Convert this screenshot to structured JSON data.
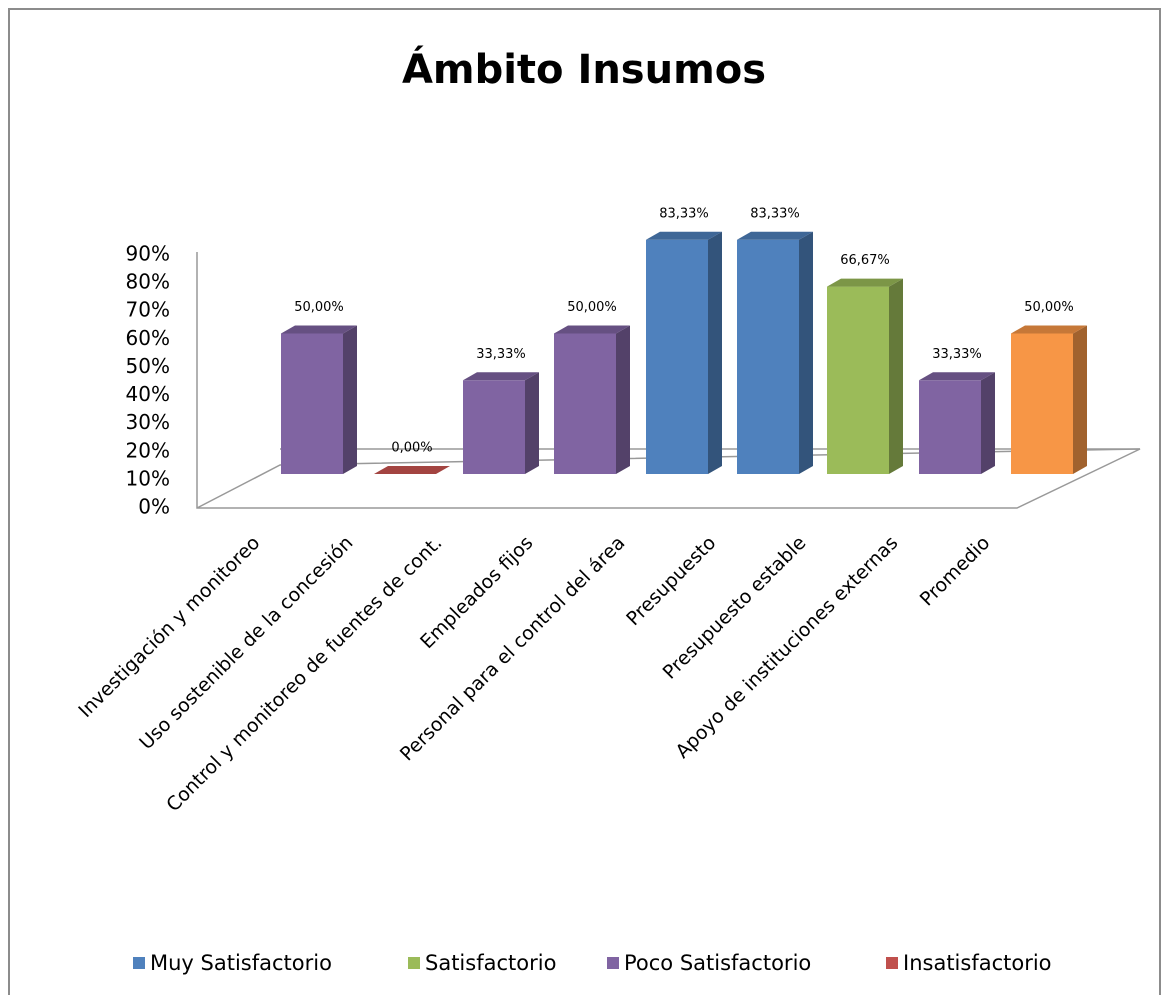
{
  "chart_data": {
    "type": "bar3d",
    "title": "Ámbito Insumos",
    "categories": [
      "Investigación y monitoreo",
      "Uso sostenible de la concesión",
      "Control y monitoreo de fuentes de cont.",
      "Empleados fijos",
      "Personal para el control del área",
      "Presupuesto",
      "Presupuesto estable",
      "Apoyo de instituciones externas",
      "Promedio"
    ],
    "values": [
      50,
      0,
      33.33,
      50,
      83.33,
      83.33,
      66.67,
      33.33,
      50
    ],
    "value_labels": [
      "50,00%",
      "0,00%",
      "33,33%",
      "50,00%",
      "83,33%",
      "83,33%",
      "66,67%",
      "33,33%",
      "50,00%"
    ],
    "colors": [
      "#8064a2",
      "#c0504d",
      "#8064a2",
      "#8064a2",
      "#4f81bd",
      "#4f81bd",
      "#9bbb59",
      "#8064a2",
      "#f79646"
    ],
    "ylim": [
      0,
      90
    ],
    "yticks": [
      {
        "value": 0,
        "label": "0%"
      },
      {
        "value": 10,
        "label": "10%"
      },
      {
        "value": 20,
        "label": "20%"
      },
      {
        "value": 30,
        "label": "30%"
      },
      {
        "value": 40,
        "label": "40%"
      },
      {
        "value": 50,
        "label": "50%"
      },
      {
        "value": 60,
        "label": "60%"
      },
      {
        "value": 70,
        "label": "70%"
      },
      {
        "value": 80,
        "label": "80%"
      },
      {
        "value": 90,
        "label": "90%"
      }
    ],
    "legend": [
      {
        "name": "Muy Satisfactorio",
        "color": "#4f81bd"
      },
      {
        "name": "Satisfactorio",
        "color": "#9bbb59"
      },
      {
        "name": "Poco Satisfactorio",
        "color": "#8064a2"
      },
      {
        "name": "Insatisfactorio",
        "color": "#c0504d"
      }
    ],
    "legend_position": "bottom"
  }
}
